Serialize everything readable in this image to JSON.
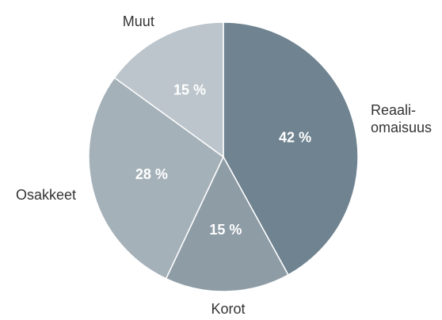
{
  "chart_data": {
    "type": "pie",
    "categories": [
      "Reaali-omaisuus",
      "Korot",
      "Osakkeet",
      "Muut"
    ],
    "values": [
      42,
      15,
      28,
      15
    ],
    "value_labels": [
      "42 %",
      "15 %",
      "28 %",
      "15 %"
    ],
    "colors": [
      "#6f8390",
      "#8e9ca6",
      "#a5b1b9",
      "#bcc5cb"
    ]
  }
}
